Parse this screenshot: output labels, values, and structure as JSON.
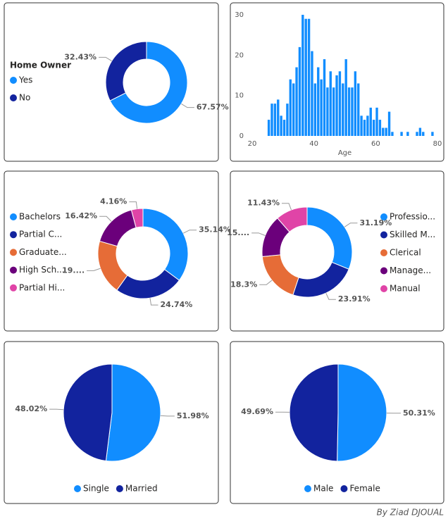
{
  "chart_data": [
    {
      "type": "donut",
      "legend_title": "Home Owner",
      "categories": [
        "Yes",
        "No"
      ],
      "values": [
        67.57,
        32.43
      ],
      "value_labels": [
        "67.57%",
        "32.43%"
      ],
      "colors": [
        "#118DFF",
        "#12239E"
      ]
    },
    {
      "type": "histogram",
      "x_label": "Age",
      "color": "#118DFF",
      "bins": [
        25,
        26,
        27,
        28,
        29,
        30,
        31,
        32,
        33,
        34,
        35,
        36,
        37,
        38,
        39,
        40,
        41,
        42,
        43,
        44,
        45,
        46,
        47,
        48,
        49,
        50,
        51,
        52,
        53,
        54,
        55,
        56,
        57,
        58,
        59,
        60,
        61,
        62,
        63,
        64,
        65,
        66,
        67,
        68,
        69,
        70,
        71,
        72,
        73,
        74,
        75,
        76,
        77,
        78,
        79
      ],
      "values": [
        4,
        8,
        8,
        9,
        5,
        4,
        8,
        14,
        13,
        17,
        22,
        30,
        29,
        29,
        21,
        13,
        17,
        14,
        19,
        12,
        16,
        12,
        15,
        16,
        13,
        19,
        12,
        12,
        16,
        13,
        5,
        4,
        5,
        7,
        4,
        7,
        4,
        2,
        2,
        6,
        1,
        0,
        0,
        1,
        0,
        1,
        0,
        0,
        1,
        2,
        1,
        0,
        0,
        1
      ],
      "xlim": [
        20,
        80
      ],
      "xticks": [
        20,
        40,
        60,
        80
      ],
      "ylim": [
        0,
        30
      ],
      "yticks": [
        0,
        10,
        20,
        30
      ]
    },
    {
      "type": "donut",
      "categories": [
        "Bachelors",
        "Partial C...",
        "Graduate...",
        "High Sch...",
        "Partial Hi..."
      ],
      "values": [
        35.14,
        24.74,
        19.54,
        16.42,
        4.16
      ],
      "value_labels": [
        "35.14%",
        "24.74%",
        "19....",
        "16.42%",
        "4.16%"
      ],
      "colors": [
        "#118DFF",
        "#12239E",
        "#E66C37",
        "#6B007B",
        "#E044A7"
      ]
    },
    {
      "type": "donut",
      "categories": [
        "Professio...",
        "Skilled M...",
        "Clerical",
        "Manage...",
        "Manual"
      ],
      "values": [
        31.19,
        23.91,
        18.3,
        15.17,
        11.43
      ],
      "value_labels": [
        "31.19%",
        "23.91%",
        "18.3%",
        "15....",
        "11.43%"
      ],
      "colors": [
        "#118DFF",
        "#12239E",
        "#E66C37",
        "#6B007B",
        "#E044A7"
      ]
    },
    {
      "type": "pie",
      "categories": [
        "Single",
        "Married"
      ],
      "values": [
        51.98,
        48.02
      ],
      "value_labels": [
        "51.98%",
        "48.02%"
      ],
      "colors": [
        "#118DFF",
        "#12239E"
      ]
    },
    {
      "type": "pie",
      "categories": [
        "Male",
        "Female"
      ],
      "values": [
        50.31,
        49.69
      ],
      "value_labels": [
        "50.31%",
        "49.69%"
      ],
      "colors": [
        "#118DFF",
        "#12239E"
      ]
    }
  ],
  "footer": "By Ziad DJOUAL"
}
